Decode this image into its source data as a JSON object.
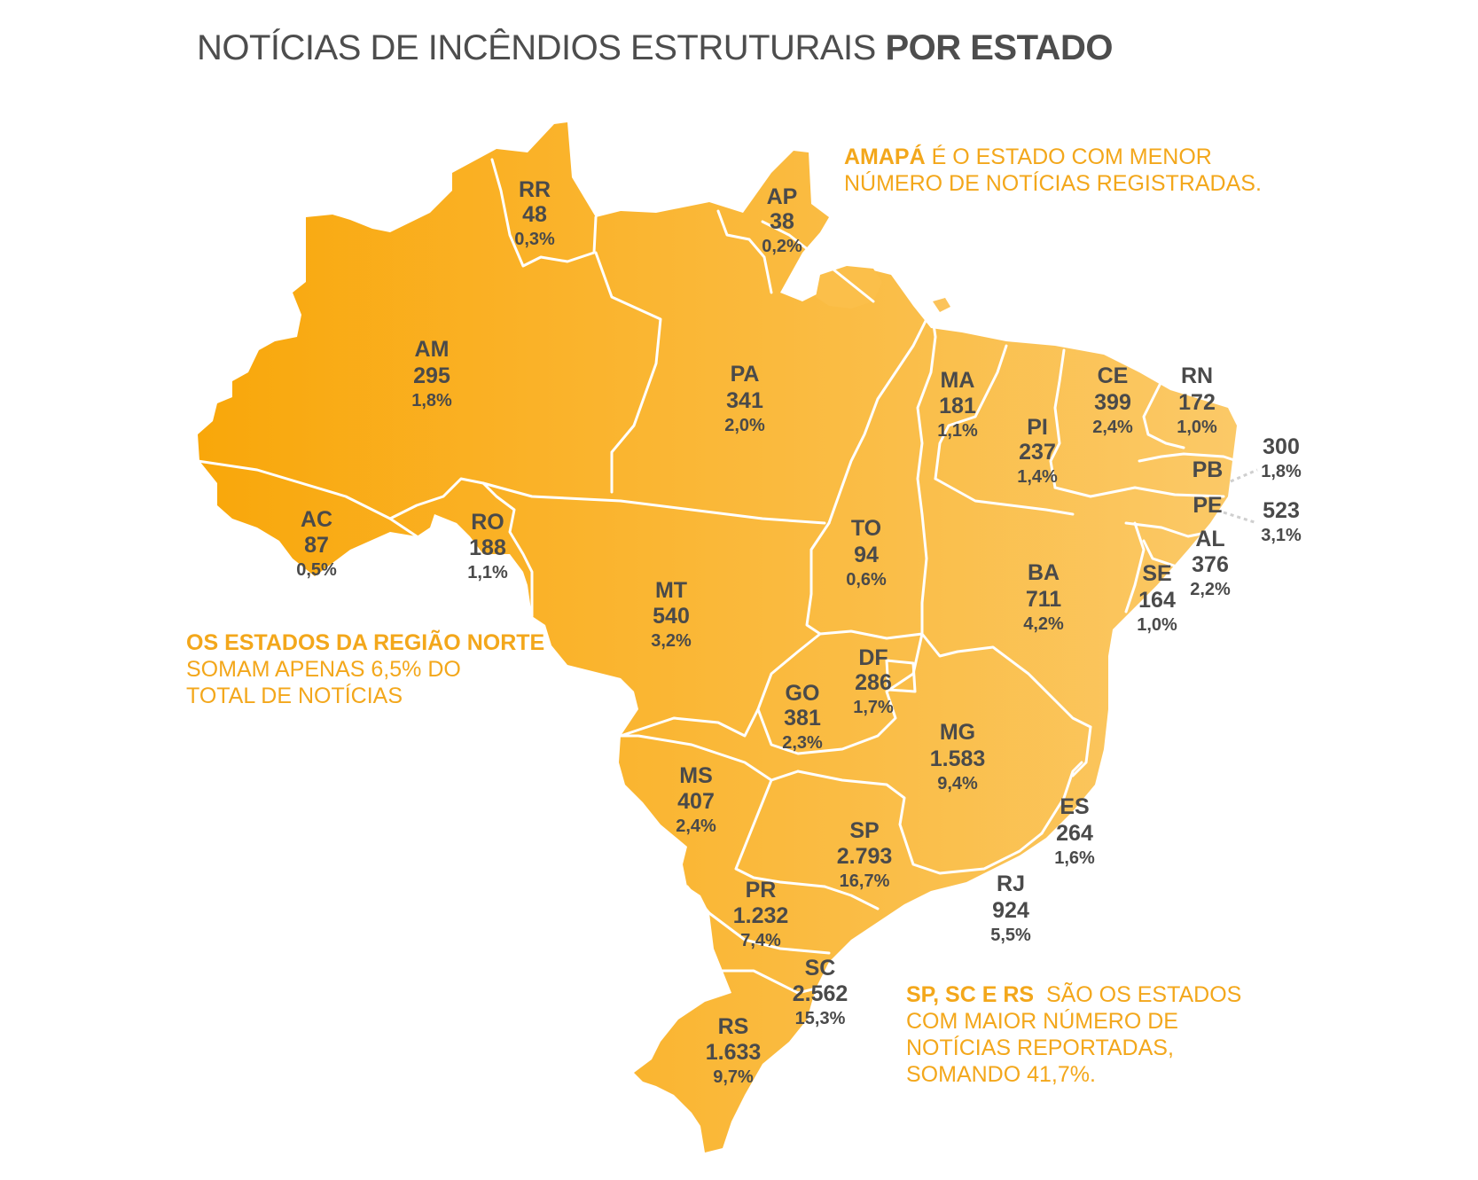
{
  "title": {
    "regular": "NOTÍCIAS DE INCÊNDIOS ESTRUTURAIS",
    "bold": "POR ESTADO"
  },
  "colors": {
    "dark_orange": "#f9a70a",
    "light_orange": "#fbc967",
    "border": "#ffffff",
    "accent_text": "#f3a71b",
    "label_text": "#4a4a4a"
  },
  "states": {
    "RR": {
      "code": "RR",
      "value": "48",
      "pct": "0,3%"
    },
    "AP": {
      "code": "AP",
      "value": "38",
      "pct": "0,2%"
    },
    "AM": {
      "code": "AM",
      "value": "295",
      "pct": "1,8%"
    },
    "PA": {
      "code": "PA",
      "value": "341",
      "pct": "2,0%"
    },
    "MA": {
      "code": "MA",
      "value": "181",
      "pct": "1,1%"
    },
    "CE": {
      "code": "CE",
      "value": "399",
      "pct": "2,4%"
    },
    "RN": {
      "code": "RN",
      "value": "172",
      "pct": "1,0%"
    },
    "PI": {
      "code": "PI",
      "value": "237",
      "pct": "1,4%"
    },
    "PB": {
      "code": "PB",
      "value": "300",
      "pct": "1,8%"
    },
    "PE": {
      "code": "PE",
      "value": "523",
      "pct": "3,1%"
    },
    "AC": {
      "code": "AC",
      "value": "87",
      "pct": "0,5%"
    },
    "RO": {
      "code": "RO",
      "value": "188",
      "pct": "1,1%"
    },
    "TO": {
      "code": "TO",
      "value": "94",
      "pct": "0,6%"
    },
    "BA": {
      "code": "BA",
      "value": "711",
      "pct": "4,2%"
    },
    "AL": {
      "code": "AL",
      "value": "376",
      "pct": "2,2%"
    },
    "SE": {
      "code": "SE",
      "value": "164",
      "pct": "1,0%"
    },
    "MT": {
      "code": "MT",
      "value": "540",
      "pct": "3,2%"
    },
    "DF": {
      "code": "DF",
      "value": "286",
      "pct": "1,7%"
    },
    "GO": {
      "code": "GO",
      "value": "381",
      "pct": "2,3%"
    },
    "MG": {
      "code": "MG",
      "value": "1.583",
      "pct": "9,4%"
    },
    "MS": {
      "code": "MS",
      "value": "407",
      "pct": "2,4%"
    },
    "ES": {
      "code": "ES",
      "value": "264",
      "pct": "1,6%"
    },
    "SP": {
      "code": "SP",
      "value": "2.793",
      "pct": "16,7%"
    },
    "RJ": {
      "code": "RJ",
      "value": "924",
      "pct": "5,5%"
    },
    "PR": {
      "code": "PR",
      "value": "1.232",
      "pct": "7,4%"
    },
    "SC": {
      "code": "SC",
      "value": "2.562",
      "pct": "15,3%"
    },
    "RS": {
      "code": "RS",
      "value": "1.633",
      "pct": "9,7%"
    }
  },
  "notes": {
    "amapa": {
      "bold": "AMAPÁ",
      "line1": " É O ESTADO  COM MENOR",
      "line2": "NÚMERO DE NOTÍCIAS REGISTRADAS."
    },
    "norte": {
      "bold": "OS ESTADOS DA REGIÃO NORTE",
      "line2": "SOMAM APENAS 6,5% DO",
      "line3": "TOTAL DE NOTÍCIAS"
    },
    "sul": {
      "bold": "SP, SC E RS",
      "line1": "  SÃO OS ESTADOS",
      "line2": "COM MAIOR NÚMERO DE",
      "line3": "NOTÍCIAS REPORTADAS,",
      "line4": "SOMANDO 41,7%."
    }
  }
}
